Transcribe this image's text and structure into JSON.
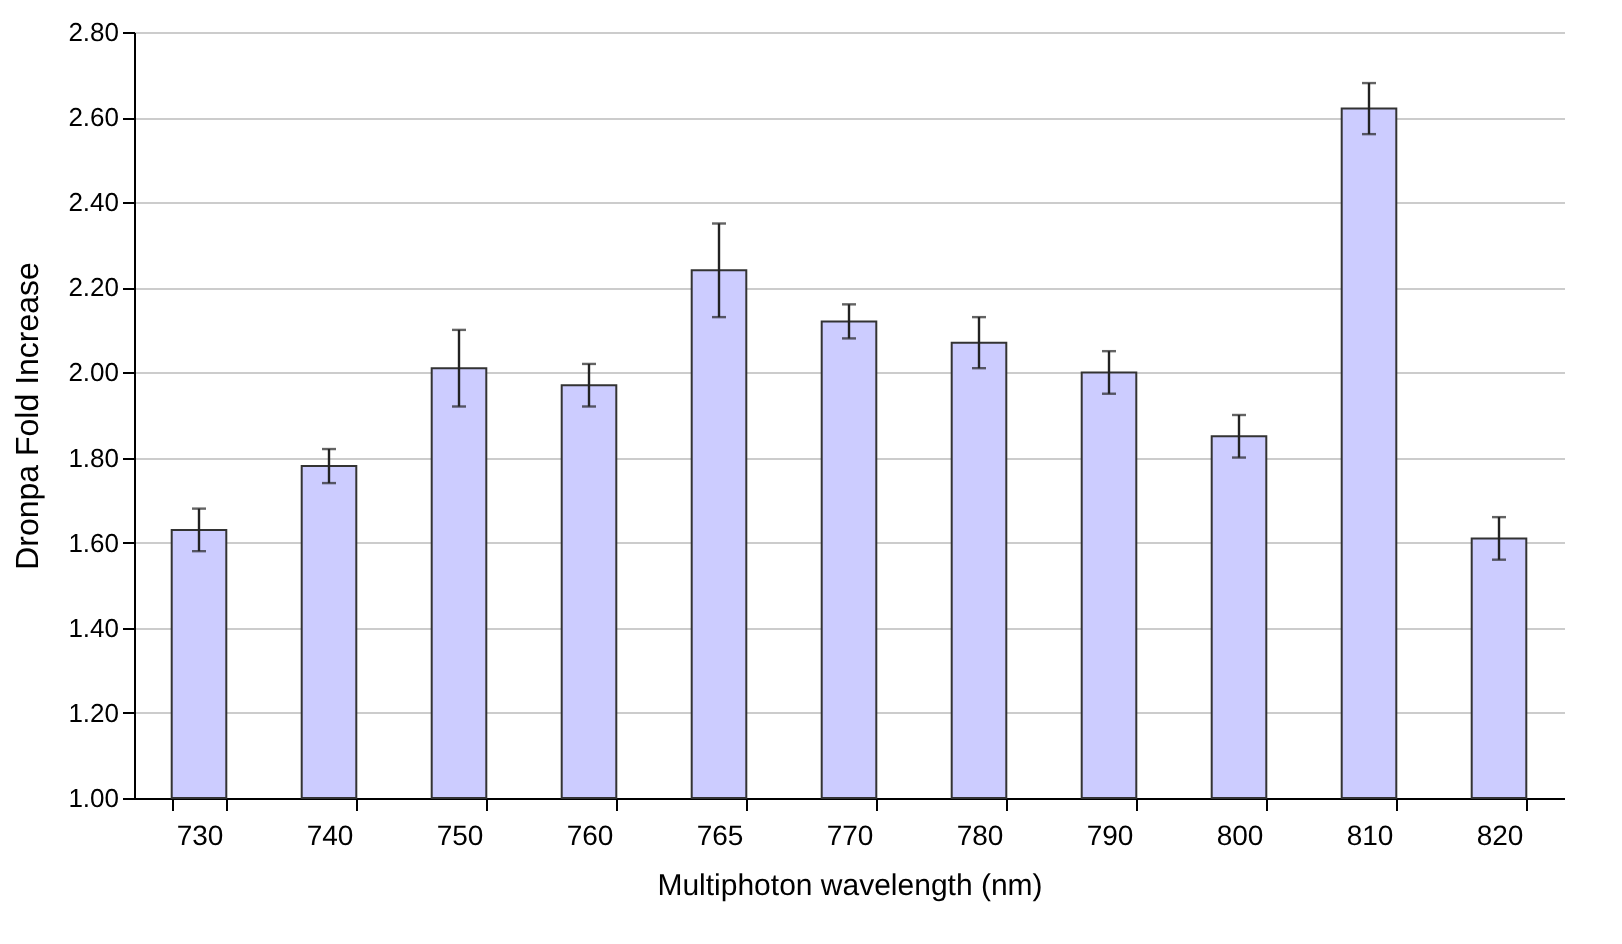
{
  "chart_data": {
    "type": "bar",
    "xlabel": "Multiphoton wavelength (nm)",
    "ylabel": "Dronpa Fold Increase",
    "categories": [
      "730",
      "740",
      "750",
      "760",
      "765",
      "770",
      "780",
      "790",
      "800",
      "810",
      "820"
    ],
    "values": [
      1.63,
      1.78,
      2.01,
      1.97,
      2.24,
      2.12,
      2.07,
      2.0,
      1.85,
      2.62,
      1.61
    ],
    "errors": [
      0.05,
      0.04,
      0.09,
      0.05,
      0.11,
      0.04,
      0.06,
      0.05,
      0.05,
      0.06,
      0.05
    ],
    "color": "#ccccff",
    "ylim": [
      1,
      2.8
    ],
    "yticks": [
      {
        "value": 1,
        "label": "1.00"
      },
      {
        "value": 1.2,
        "label": "1.20"
      },
      {
        "value": 1.4,
        "label": "1.40"
      },
      {
        "value": 1.6,
        "label": "1.60"
      },
      {
        "value": 1.8,
        "label": "1.80"
      },
      {
        "value": 2,
        "label": "2.00"
      },
      {
        "value": 2.2,
        "label": "2.20"
      },
      {
        "value": 2.4,
        "label": "2.40"
      },
      {
        "value": 2.6,
        "label": "2.60"
      },
      {
        "value": 2.8,
        "label": "2.80"
      }
    ],
    "grid": "y"
  }
}
